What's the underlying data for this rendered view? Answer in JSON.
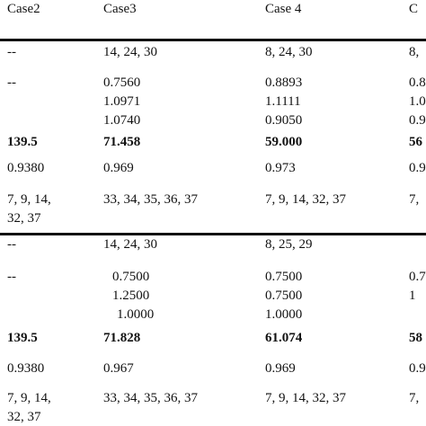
{
  "table": {
    "header": [
      "Case2",
      "Case3",
      "Case 4",
      "C"
    ],
    "sections": [
      {
        "rows": [
          {
            "cells": [
              [
                "--"
              ],
              [
                "14, 24, 30"
              ],
              [
                "8, 24, 30"
              ],
              [
                "8,"
              ]
            ]
          },
          {
            "cells": [
              [
                "--"
              ],
              [
                "0.7560",
                "1.0971",
                "1.0740"
              ],
              [
                "0.8893",
                "1.1111",
                "0.9050"
              ],
              [
                "0.8",
                "1.0",
                "0.9"
              ]
            ]
          },
          {
            "bold": true,
            "cells": [
              [
                "139.5"
              ],
              [
                "71.458"
              ],
              [
                "59.000"
              ],
              [
                "56"
              ]
            ]
          },
          {
            "cells": [
              [
                "0.9380"
              ],
              [
                "0.969"
              ],
              [
                "0.973"
              ],
              [
                "0.9"
              ]
            ]
          },
          {
            "cells": [
              [
                "7, 9, 14,",
                "32, 37"
              ],
              [
                "33, 34, 35, 36, 37"
              ],
              [
                "7, 9, 14, 32, 37"
              ],
              [
                "7,"
              ]
            ]
          }
        ]
      },
      {
        "rows": [
          {
            "cells": [
              [
                "--"
              ],
              [
                "14, 24, 30"
              ],
              [
                "8, 25, 29"
              ],
              []
            ]
          },
          {
            "cells": [
              [
                "--"
              ],
              [
                "0.7500",
                "1.2500",
                "1.0000"
              ],
              [
                "0.7500",
                "0.7500",
                "1.0000"
              ],
              [
                "0.7",
                "1"
              ]
            ]
          },
          {
            "bold": true,
            "cells": [
              [
                "139.5"
              ],
              [
                "71.828"
              ],
              [
                "61.074"
              ],
              [
                "58"
              ]
            ]
          },
          {
            "cells": [
              [
                "0.9380"
              ],
              [
                "0.967"
              ],
              [
                "0.969"
              ],
              [
                "0.9"
              ]
            ]
          },
          {
            "cells": [
              [
                "7, 9, 14,",
                "32, 37"
              ],
              [
                "33, 34, 35, 36, 37"
              ],
              [
                "7, 9, 14, 32, 37"
              ],
              [
                "7,"
              ]
            ]
          }
        ]
      }
    ]
  }
}
